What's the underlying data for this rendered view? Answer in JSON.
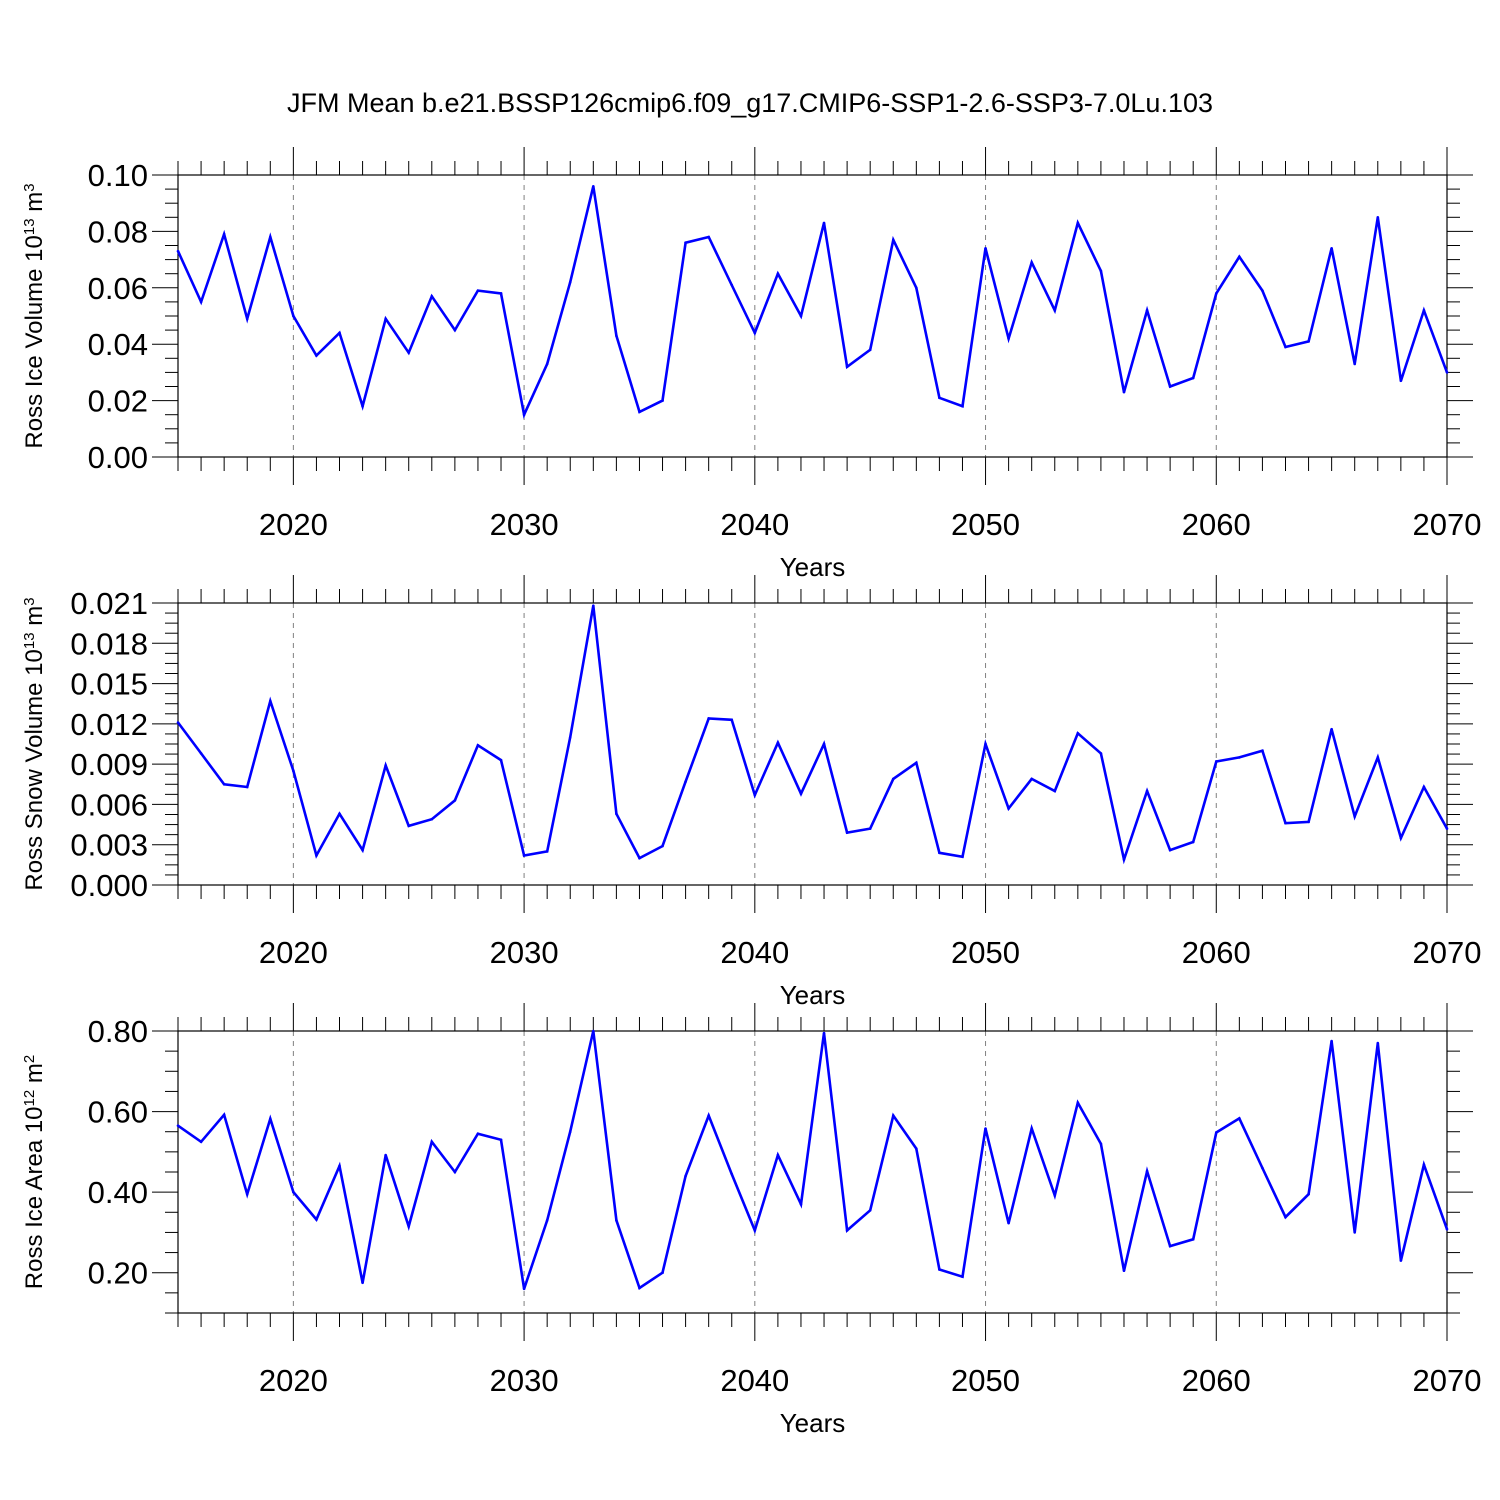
{
  "figure": {
    "title": "JFM Mean b.e21.BSSP126cmip6.f09_g17.CMIP6-SSP1-2.6-SSP3-7.0Lu.103"
  },
  "colors": {
    "line": "#0000ff",
    "axis": "#000000",
    "grid": "#808080"
  },
  "chart_data": [
    {
      "type": "line",
      "ylabel_main": "Ross Ice Volume 10",
      "ylabel_exp": "13",
      "ylabel_unit": " m",
      "ylabel_unit_exp": "3",
      "xlabel": "Years",
      "xlim": [
        2015,
        2070
      ],
      "ylim": [
        0,
        0.1
      ],
      "xticks": [
        2020,
        2030,
        2040,
        2050,
        2060,
        2070
      ],
      "xtick_labels": [
        "2020",
        "2030",
        "2040",
        "2050",
        "2060",
        "2070"
      ],
      "yticks": [
        0,
        0.02,
        0.04,
        0.06,
        0.08,
        0.1
      ],
      "ytick_labels": [
        "0.00",
        "0.02",
        "0.04",
        "0.06",
        "0.08",
        "0.10"
      ],
      "x": [
        2015,
        2016,
        2017,
        2018,
        2019,
        2020,
        2021,
        2022,
        2023,
        2024,
        2025,
        2026,
        2027,
        2028,
        2029,
        2030,
        2031,
        2032,
        2033,
        2034,
        2035,
        2036,
        2037,
        2038,
        2039,
        2040,
        2041,
        2042,
        2043,
        2044,
        2045,
        2046,
        2047,
        2048,
        2049,
        2050,
        2051,
        2052,
        2053,
        2054,
        2055,
        2056,
        2057,
        2058,
        2059,
        2060,
        2061,
        2062,
        2063,
        2064,
        2065,
        2066,
        2067,
        2068,
        2069,
        2070
      ],
      "y": [
        0.073,
        0.055,
        0.079,
        0.049,
        0.078,
        0.05,
        0.036,
        0.044,
        0.018,
        0.049,
        0.037,
        0.057,
        0.045,
        0.059,
        0.058,
        0.015,
        0.033,
        0.062,
        0.096,
        0.043,
        0.016,
        0.02,
        0.076,
        0.078,
        0.061,
        0.044,
        0.065,
        0.05,
        0.083,
        0.032,
        0.038,
        0.077,
        0.06,
        0.021,
        0.018,
        0.074,
        0.042,
        0.069,
        0.052,
        0.083,
        0.066,
        0.023,
        0.052,
        0.025,
        0.028,
        0.058,
        0.071,
        0.059,
        0.039,
        0.041,
        0.074,
        0.033,
        0.085,
        0.027,
        0.052,
        0.03
      ]
    },
    {
      "type": "line",
      "ylabel_main": "Ross Snow Volume 10",
      "ylabel_exp": "13",
      "ylabel_unit": " m",
      "ylabel_unit_exp": "3",
      "xlabel": "Years",
      "xlim": [
        2015,
        2070
      ],
      "ylim": [
        0,
        0.021
      ],
      "xticks": [
        2020,
        2030,
        2040,
        2050,
        2060,
        2070
      ],
      "xtick_labels": [
        "2020",
        "2030",
        "2040",
        "2050",
        "2060",
        "2070"
      ],
      "yticks": [
        0,
        0.003,
        0.006,
        0.009,
        0.012,
        0.015,
        0.018,
        0.021
      ],
      "ytick_labels": [
        "0.000",
        "0.003",
        "0.006",
        "0.009",
        "0.012",
        "0.015",
        "0.018",
        "0.021"
      ],
      "x": [
        2015,
        2016,
        2017,
        2018,
        2019,
        2020,
        2021,
        2022,
        2023,
        2024,
        2025,
        2026,
        2027,
        2028,
        2029,
        2030,
        2031,
        2032,
        2033,
        2034,
        2035,
        2036,
        2037,
        2038,
        2039,
        2040,
        2041,
        2042,
        2043,
        2044,
        2045,
        2046,
        2047,
        2048,
        2049,
        2050,
        2051,
        2052,
        2053,
        2054,
        2055,
        2056,
        2057,
        2058,
        2059,
        2060,
        2061,
        2062,
        2063,
        2064,
        2065,
        2066,
        2067,
        2068,
        2069,
        2070
      ],
      "y": [
        0.0121,
        0.0098,
        0.0075,
        0.0073,
        0.0137,
        0.0085,
        0.0022,
        0.0053,
        0.0026,
        0.0089,
        0.0044,
        0.0049,
        0.0063,
        0.0104,
        0.0093,
        0.0022,
        0.0025,
        0.011,
        0.0208,
        0.0053,
        0.002,
        0.0029,
        0.0077,
        0.0124,
        0.0123,
        0.0067,
        0.0106,
        0.0068,
        0.0105,
        0.0039,
        0.0042,
        0.0079,
        0.0091,
        0.0024,
        0.0021,
        0.0105,
        0.0057,
        0.0079,
        0.007,
        0.0113,
        0.0098,
        0.0019,
        0.007,
        0.0026,
        0.0032,
        0.0092,
        0.0095,
        0.01,
        0.0046,
        0.0047,
        0.0116,
        0.0051,
        0.0095,
        0.0035,
        0.0073,
        0.0042
      ]
    },
    {
      "type": "line",
      "ylabel_main": "Ross Ice Area 10",
      "ylabel_exp": "12",
      "ylabel_unit": " m",
      "ylabel_unit_exp": "2",
      "xlabel": "Years",
      "xlim": [
        2015,
        2070
      ],
      "ylim": [
        0.1,
        0.8
      ],
      "xticks": [
        2020,
        2030,
        2040,
        2050,
        2060,
        2070
      ],
      "xtick_labels": [
        "2020",
        "2030",
        "2040",
        "2050",
        "2060",
        "2070"
      ],
      "yticks": [
        0.2,
        0.4,
        0.6,
        0.8
      ],
      "ytick_labels": [
        "0.20",
        "0.40",
        "0.60",
        "0.80"
      ],
      "x": [
        2015,
        2016,
        2017,
        2018,
        2019,
        2020,
        2021,
        2022,
        2023,
        2024,
        2025,
        2026,
        2027,
        2028,
        2029,
        2030,
        2031,
        2032,
        2033,
        2034,
        2035,
        2036,
        2037,
        2038,
        2039,
        2040,
        2041,
        2042,
        2043,
        2044,
        2045,
        2046,
        2047,
        2048,
        2049,
        2050,
        2051,
        2052,
        2053,
        2054,
        2055,
        2056,
        2057,
        2058,
        2059,
        2060,
        2061,
        2062,
        2063,
        2064,
        2065,
        2066,
        2067,
        2068,
        2069,
        2070
      ],
      "y": [
        0.565,
        0.525,
        0.592,
        0.395,
        0.582,
        0.4,
        0.332,
        0.465,
        0.175,
        0.492,
        0.315,
        0.525,
        0.45,
        0.545,
        0.53,
        0.16,
        0.33,
        0.55,
        0.8,
        0.33,
        0.162,
        0.2,
        0.44,
        0.59,
        0.445,
        0.305,
        0.492,
        0.37,
        0.795,
        0.305,
        0.355,
        0.59,
        0.508,
        0.208,
        0.19,
        0.558,
        0.323,
        0.558,
        0.392,
        0.622,
        0.52,
        0.205,
        0.452,
        0.266,
        0.283,
        0.548,
        0.583,
        0.46,
        0.338,
        0.395,
        0.775,
        0.3,
        0.77,
        0.23,
        0.468,
        0.308
      ]
    }
  ]
}
